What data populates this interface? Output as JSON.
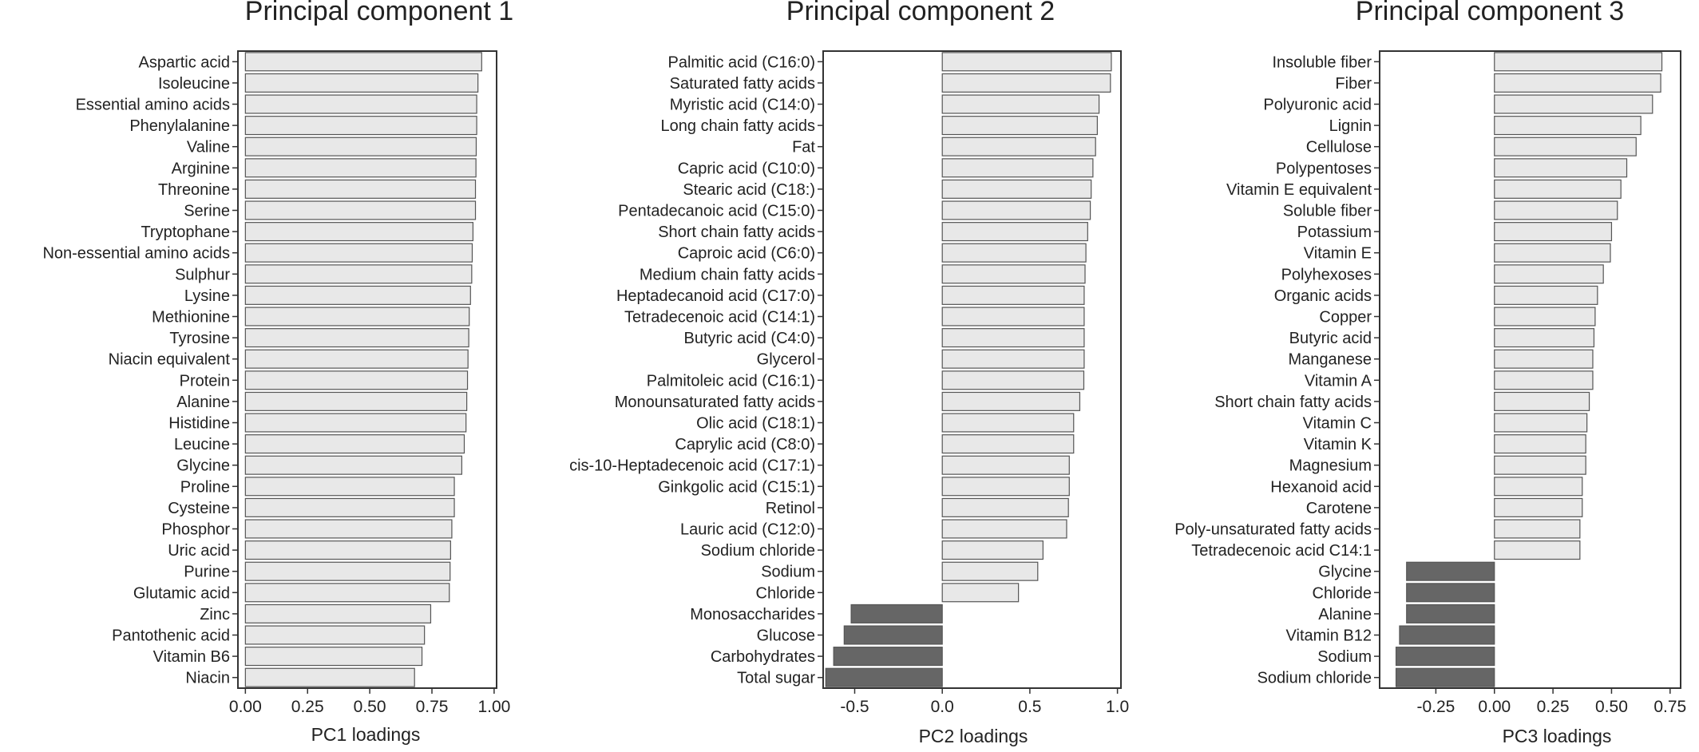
{
  "colors": {
    "positive_fill": "#e8e8e8",
    "negative_fill": "#666666",
    "bar_stroke": "#555555",
    "frame": "#333333",
    "text": "#222222"
  },
  "chart_data": [
    {
      "type": "bar",
      "orientation": "horizontal",
      "title": "Principal component 1",
      "xlabel": "PC1 loadings",
      "ylabel": "",
      "xlim": [
        -0.03,
        1.01
      ],
      "xticks": [
        0.0,
        0.25,
        0.5,
        0.75,
        1.0
      ],
      "xtick_labels": [
        "0.00",
        "0.25",
        "0.50",
        "0.75",
        "1.00"
      ],
      "grid": false,
      "categories": [
        "Aspartic acid",
        "Isoleucine",
        "Essential amino acids",
        "Phenylalanine",
        "Valine",
        "Arginine",
        "Threonine",
        "Serine",
        "Tryptophane",
        "Non-essential amino acids",
        "Sulphur",
        "Lysine",
        "Methionine",
        "Tyrosine",
        "Niacin equivalent",
        "Protein",
        "Alanine",
        "Histidine",
        "Leucine",
        "Glycine",
        "Proline",
        "Cysteine",
        "Phosphor",
        "Uric acid",
        "Purine",
        "Glutamic acid",
        "Zinc",
        "Pantothenic acid",
        "Vitamin B6",
        "Niacin"
      ],
      "values": [
        0.95,
        0.935,
        0.93,
        0.93,
        0.928,
        0.927,
        0.925,
        0.925,
        0.915,
        0.912,
        0.91,
        0.905,
        0.9,
        0.898,
        0.895,
        0.893,
        0.89,
        0.887,
        0.88,
        0.87,
        0.84,
        0.84,
        0.83,
        0.825,
        0.823,
        0.82,
        0.745,
        0.72,
        0.71,
        0.68
      ]
    },
    {
      "type": "bar",
      "orientation": "horizontal",
      "title": "Principal component 2",
      "xlabel": "PC2 loadings",
      "ylabel": "",
      "xlim": [
        -0.68,
        1.02
      ],
      "xticks": [
        -0.5,
        0.0,
        0.5,
        1.0
      ],
      "xtick_labels": [
        "-0.5",
        "0.0",
        "0.5",
        "1.0"
      ],
      "grid": false,
      "categories": [
        "Palmitic acid (C16:0)",
        "Saturated fatty acids",
        "Myristic acid (C14:0)",
        "Long chain fatty acids",
        "Fat",
        "Capric acid (C10:0)",
        "Stearic acid (C18:)",
        "Pentadecanoic acid (C15:0)",
        "Short chain fatty acids",
        "Caproic acid (C6:0)",
        "Medium chain fatty acids",
        "Heptadecanoid acid (C17:0)",
        "Tetradecenoic acid (C14:1)",
        "Butyric acid (C4:0)",
        "Glycerol",
        "Palmitoleic acid (C16:1)",
        "Monounsaturated fatty acids",
        "Olic acid (C18:1)",
        "Caprylic acid (C8:0)",
        "cis-10-Heptadecenoic acid (C17:1)",
        "Ginkgolic acid (C15:1)",
        "Retinol",
        "Lauric acid (C12:0)",
        "Sodium chloride",
        "Sodium",
        "Chloride",
        "Monosaccharides",
        "Glucose",
        "Carbohydrates",
        "Total sugar"
      ],
      "values": [
        0.965,
        0.96,
        0.895,
        0.885,
        0.875,
        0.86,
        0.85,
        0.845,
        0.83,
        0.82,
        0.815,
        0.81,
        0.81,
        0.81,
        0.81,
        0.808,
        0.785,
        0.75,
        0.75,
        0.725,
        0.725,
        0.72,
        0.71,
        0.575,
        0.545,
        0.435,
        -0.52,
        -0.56,
        -0.62,
        -0.665
      ]
    },
    {
      "type": "bar",
      "orientation": "horizontal",
      "title": "Principal component 3",
      "xlabel": "PC3 loadings",
      "ylabel": "",
      "xlim": [
        -0.49,
        0.795
      ],
      "xticks": [
        -0.25,
        0.0,
        0.25,
        0.5,
        0.75
      ],
      "xtick_labels": [
        "-0.25",
        "0.00",
        "0.25",
        "0.50",
        "0.75"
      ],
      "grid": false,
      "categories": [
        "Insoluble fiber",
        "Fiber",
        "Polyuronic acid",
        "Lignin",
        "Cellulose",
        "Polypentoses",
        "Vitamin E equivalent",
        "Soluble fiber",
        "Potassium",
        "Vitamin E",
        "Polyhexoses",
        "Organic acids",
        "Copper",
        "Butyric acid",
        "Manganese",
        "Vitamin A",
        "Short chain fatty acids",
        "Vitamin C",
        "Vitamin K",
        "Magnesium",
        "Hexanoid acid",
        "Carotene",
        "Poly-unsaturated fatty acids",
        "Tetradecenoic acid C14:1",
        "Glycine",
        "Chloride",
        "Alanine",
        "Vitamin B12",
        "Sodium",
        "Sodium chloride"
      ],
      "values": [
        0.715,
        0.71,
        0.675,
        0.625,
        0.605,
        0.565,
        0.54,
        0.525,
        0.5,
        0.495,
        0.465,
        0.44,
        0.43,
        0.425,
        0.42,
        0.42,
        0.405,
        0.395,
        0.39,
        0.39,
        0.375,
        0.375,
        0.365,
        0.365,
        -0.375,
        -0.375,
        -0.375,
        -0.405,
        -0.42,
        -0.42
      ]
    }
  ]
}
